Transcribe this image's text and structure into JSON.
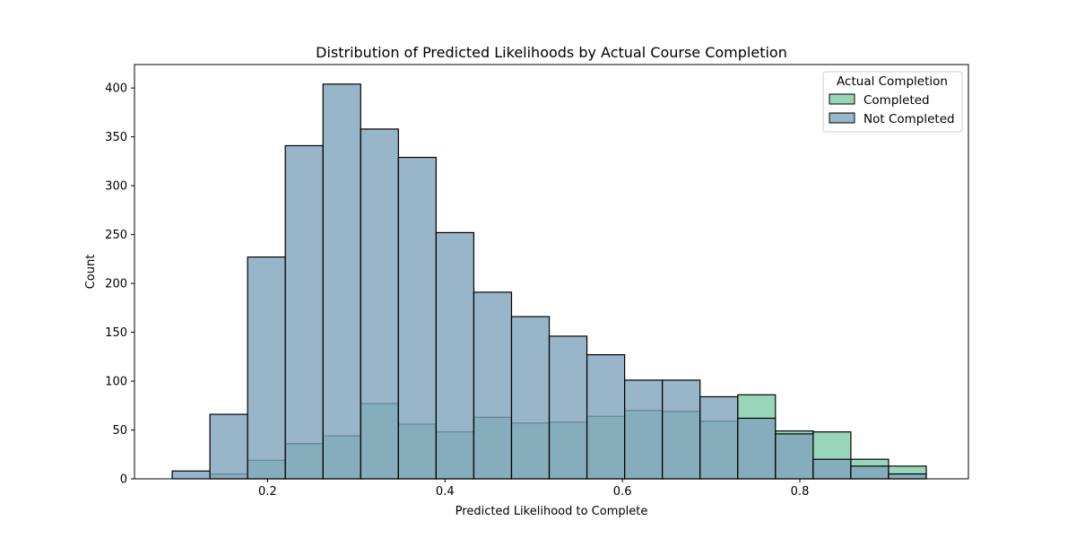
{
  "chart_data": {
    "type": "bar",
    "title": "Distribution of Predicted Likelihoods by Actual Course Completion",
    "xlabel": "Predicted Likelihood to Complete",
    "ylabel": "Count",
    "xlim": [
      0.05,
      0.99
    ],
    "ylim": [
      0,
      424
    ],
    "xticks": [
      0.2,
      0.4,
      0.6,
      0.8
    ],
    "xtick_labels": [
      "0.2",
      "0.4",
      "0.6",
      "0.8"
    ],
    "yticks": [
      0,
      50,
      100,
      150,
      200,
      250,
      300,
      350,
      400
    ],
    "ytick_labels": [
      "0",
      "50",
      "100",
      "150",
      "200",
      "250",
      "300",
      "350",
      "400"
    ],
    "grid": false,
    "legend_position": "top-right",
    "legend_title": "Actual Completion",
    "bin_edges": [
      0.0925,
      0.135,
      0.1775,
      0.22,
      0.2625,
      0.305,
      0.3475,
      0.39,
      0.4325,
      0.475,
      0.5175,
      0.56,
      0.6025,
      0.645,
      0.6875,
      0.73,
      0.7725,
      0.815,
      0.8575,
      0.9,
      0.9425
    ],
    "series": [
      {
        "name": "Completed",
        "color": "#7fcca8",
        "values": [
          0,
          5,
          19,
          36,
          44,
          77,
          56,
          48,
          63,
          57,
          58,
          64,
          70,
          69,
          59,
          86,
          49,
          48,
          20,
          13
        ]
      },
      {
        "name": "Not Completed",
        "color": "#7fa3bc",
        "values": [
          8,
          66,
          227,
          341,
          404,
          358,
          329,
          252,
          191,
          166,
          146,
          127,
          101,
          101,
          84,
          62,
          46,
          20,
          13,
          5
        ]
      }
    ]
  }
}
